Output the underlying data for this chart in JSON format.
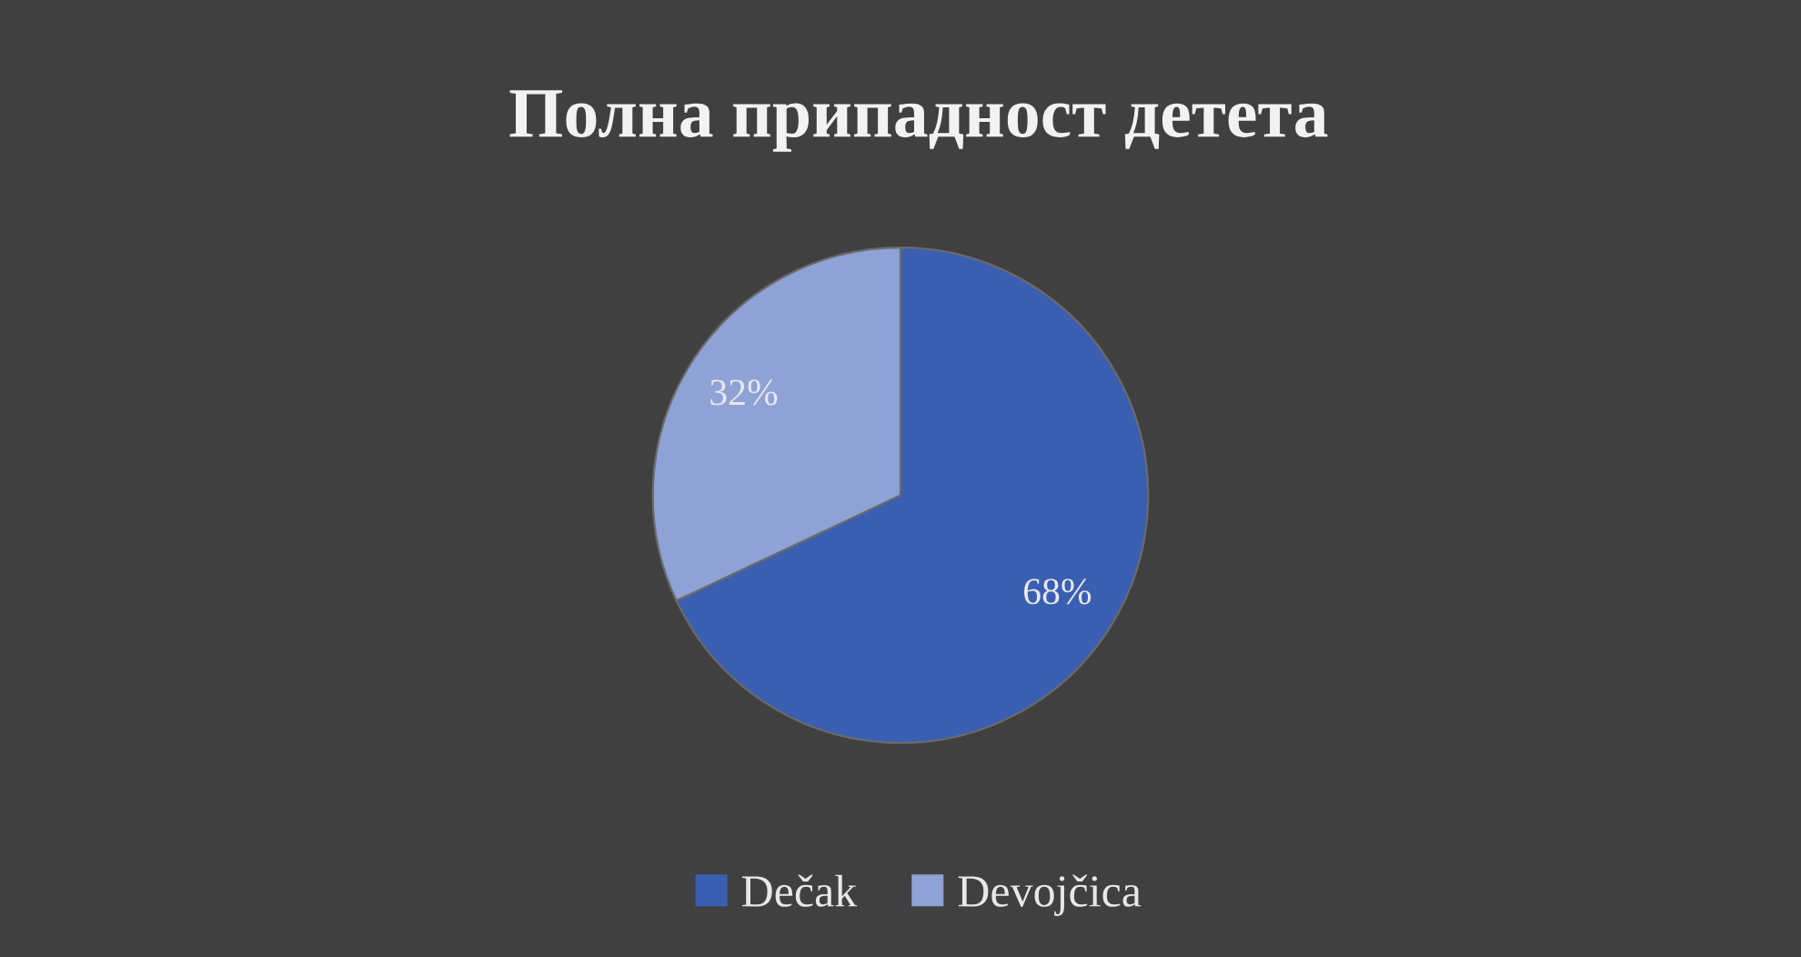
{
  "chart_data": {
    "type": "pie",
    "title": "Полна припадност детета",
    "categories": [
      "Dečak",
      "Devojčica"
    ],
    "values": [
      68,
      32
    ],
    "colors": [
      "#3a5fb2",
      "#8fa2d6"
    ],
    "value_labels": [
      "68%",
      "32%"
    ],
    "legend": "bottom"
  }
}
